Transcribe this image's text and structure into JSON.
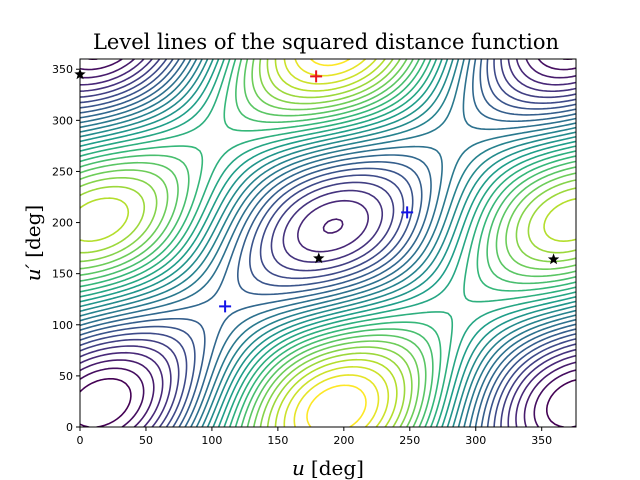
{
  "chart_data": {
    "type": "contour",
    "title": "Level lines of the squared distance function",
    "xlabel": {
      "var": "u",
      "unit": "[deg]"
    },
    "ylabel": {
      "var": "u′",
      "unit": "[deg]"
    },
    "xlim": [
      0,
      376
    ],
    "ylim": [
      0,
      360
    ],
    "xticks": [
      0,
      50,
      100,
      150,
      200,
      250,
      300,
      350
    ],
    "yticks": [
      0,
      50,
      100,
      150,
      200,
      250,
      300,
      350
    ],
    "colormap": "viridis",
    "grid": false,
    "markers": [
      {
        "kind": "plus",
        "color": "#e8141b",
        "x": 179,
        "y": 343
      },
      {
        "kind": "plus",
        "color": "#1414e8",
        "x": 110,
        "y": 118
      },
      {
        "kind": "plus",
        "color": "#1414e8",
        "x": 248,
        "y": 210
      },
      {
        "kind": "star",
        "color": "#000000",
        "x": 0,
        "y": 345
      },
      {
        "kind": "star",
        "color": "#000000",
        "x": 181,
        "y": 165
      },
      {
        "kind": "star",
        "color": "#000000",
        "x": 359,
        "y": 164
      }
    ]
  }
}
